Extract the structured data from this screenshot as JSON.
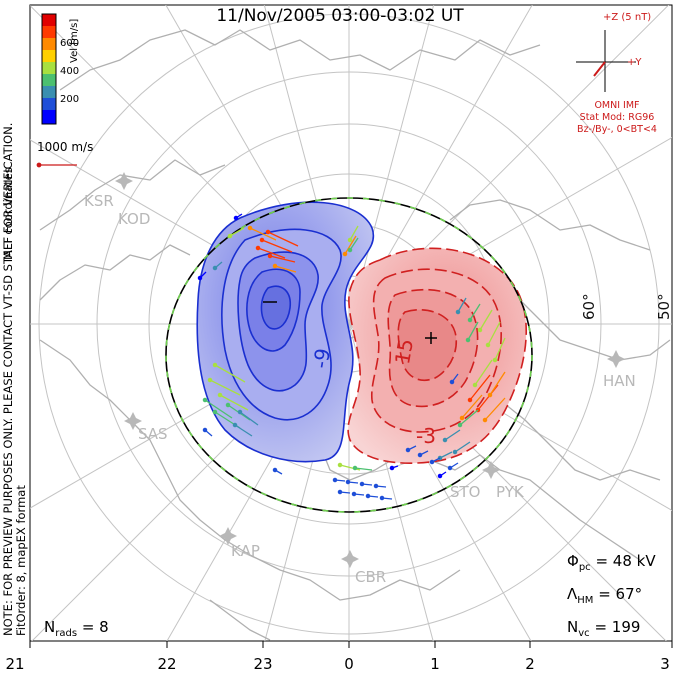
{
  "title": "11/Nov/2005 03:00-03:02 UT",
  "imf": {
    "z_label": "+Z (5 nT)",
    "y_label": "+Y",
    "source": "OMNI IMF",
    "stat_mod": "Stat Mod: RG96",
    "condition": "Bz-/By-, 0<BT<4",
    "color": "#cc1a1a"
  },
  "colorbar": {
    "unit": "Vel [m/s]",
    "tick_labels": [
      "600",
      "400",
      "200"
    ],
    "colors": [
      "#0000ff",
      "#1f4fd8",
      "#3a8fb0",
      "#4cc070",
      "#a8e040",
      "#ffd000",
      "#ff8a00",
      "#ff3a00",
      "#e00000"
    ]
  },
  "velocity_reference": "1000 m/s",
  "coordinates": "MLT coordinates",
  "note": {
    "line1": "NOTE: FOR PREVIEW PURPOSES ONLY. PLEASE CONTACT VT-SD STAFF FOR VERIFICATION.",
    "line2": "FitOrder: 8, mapEX format"
  },
  "radar_sites": [
    "KSR",
    "KOD",
    "SAS",
    "KAP",
    "CBR",
    "STO",
    "PYK",
    "HAN"
  ],
  "latitude_labels": [
    "60°",
    "50°"
  ],
  "contour_labels": [
    "-9",
    "15",
    "-3"
  ],
  "cell_markers": [
    "–",
    "+"
  ],
  "stats": {
    "nrads_label": "N",
    "nrads_sub": "rads",
    "nrads_value": "= 8",
    "phi_label": "Φ",
    "phi_sub": "pc",
    "phi_value": "= 48 kV",
    "lambda_label": "Λ",
    "lambda_sub": "HM",
    "lambda_value": "= 67°",
    "nvc_label": "N",
    "nvc_sub": "vc",
    "nvc_value": "= 199"
  },
  "mlt_ticks": [
    "21",
    "22",
    "23",
    "0",
    "1",
    "2",
    "3"
  ],
  "colors": {
    "negative_cell": "#1a2fd0",
    "positive_cell": "#d02020",
    "boundary": "#70d050",
    "site": "#b8b8b8"
  }
}
